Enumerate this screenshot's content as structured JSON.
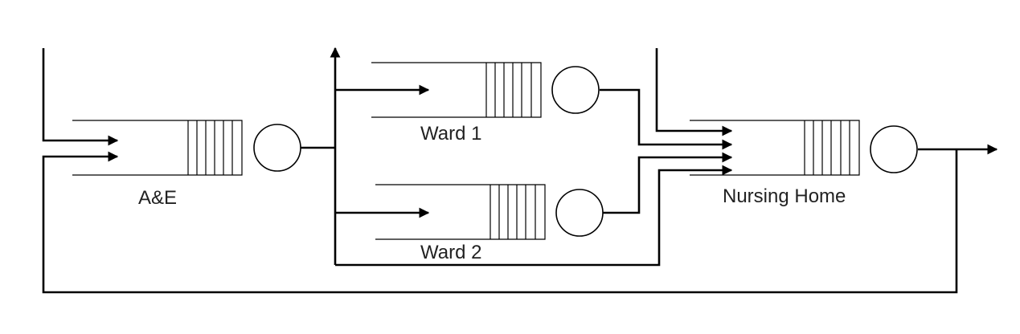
{
  "labels": {
    "ae": "A&E",
    "ward1": "Ward 1",
    "ward2": "Ward 2",
    "nursing_home": "Nursing Home"
  },
  "colors": {
    "line": "#000000",
    "text": "#222222",
    "background": "#ffffff"
  }
}
